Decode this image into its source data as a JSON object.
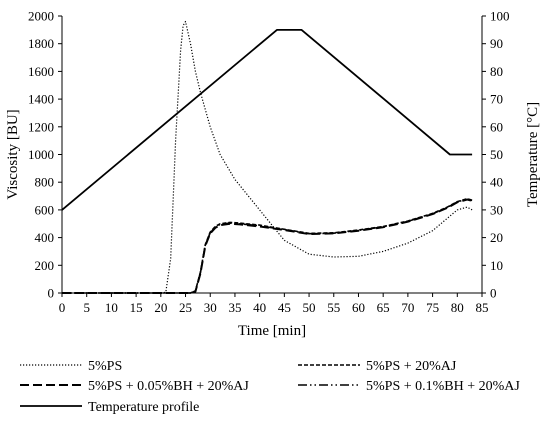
{
  "chart_data": {
    "type": "line",
    "title": "",
    "xlabel": "Time [min]",
    "ylabel": "Viscosity [BU]",
    "y2label": "Temperature [°C]",
    "xlim": [
      0,
      85
    ],
    "ylim": [
      0,
      2000
    ],
    "y2lim": [
      0,
      100
    ],
    "xticks": [
      0,
      5,
      10,
      15,
      20,
      25,
      30,
      35,
      40,
      45,
      50,
      55,
      60,
      65,
      70,
      75,
      80,
      85
    ],
    "yticks": [
      0,
      200,
      400,
      600,
      800,
      1000,
      1200,
      1400,
      1600,
      1800,
      2000
    ],
    "y2ticks": [
      0,
      10,
      20,
      30,
      40,
      50,
      60,
      70,
      80,
      90,
      100
    ],
    "grid": false,
    "legend_position": "bottom",
    "series": [
      {
        "name": "5%PS",
        "axis": "left",
        "dash": "dotted",
        "x": [
          0,
          20,
          21,
          22,
          23,
          24,
          24.5,
          25,
          26,
          27,
          28,
          30,
          32,
          35,
          40,
          45,
          50,
          55,
          60,
          65,
          70,
          75,
          78,
          80,
          82,
          83
        ],
        "y": [
          0,
          0,
          5,
          250,
          1100,
          1750,
          1930,
          1960,
          1800,
          1600,
          1450,
          1200,
          1000,
          820,
          600,
          380,
          280,
          260,
          265,
          300,
          360,
          450,
          540,
          600,
          620,
          600
        ]
      },
      {
        "name": "5%PS + 20%AJ",
        "axis": "left",
        "dash": "short-dash",
        "x": [
          0,
          26,
          27,
          28,
          29,
          30,
          31,
          32,
          34,
          36,
          40,
          45,
          50,
          55,
          60,
          65,
          70,
          75,
          78,
          80,
          82,
          83
        ],
        "y": [
          0,
          0,
          15,
          150,
          350,
          440,
          480,
          500,
          510,
          505,
          490,
          460,
          430,
          435,
          455,
          480,
          520,
          575,
          620,
          660,
          680,
          670
        ]
      },
      {
        "name": "5%PS + 0.05%BH + 20%AJ",
        "axis": "left",
        "dash": "long-dash",
        "x": [
          0,
          26,
          27,
          28,
          29,
          30,
          31,
          32,
          34,
          36,
          40,
          45,
          50,
          55,
          60,
          65,
          70,
          75,
          78,
          80,
          82,
          83
        ],
        "y": [
          0,
          0,
          10,
          140,
          340,
          430,
          470,
          490,
          500,
          495,
          480,
          455,
          425,
          430,
          450,
          475,
          515,
          570,
          615,
          655,
          675,
          665
        ]
      },
      {
        "name": "5%PS + 0.1%BH + 20%AJ",
        "axis": "left",
        "dash": "dash-dot-dot",
        "x": [
          0,
          26,
          27,
          28,
          29,
          30,
          31,
          32,
          34,
          36,
          40,
          45,
          50,
          55,
          60,
          65,
          70,
          75,
          78,
          80,
          82,
          83
        ],
        "y": [
          0,
          0,
          12,
          145,
          345,
          435,
          475,
          495,
          505,
          500,
          485,
          458,
          428,
          432,
          452,
          478,
          518,
          572,
          618,
          658,
          678,
          668
        ]
      },
      {
        "name": "Temperature profile",
        "axis": "right",
        "dash": "solid",
        "x": [
          0,
          43.5,
          48.5,
          78.5,
          83
        ],
        "y": [
          30,
          95,
          95,
          50,
          50
        ]
      }
    ],
    "colors": {
      "lines": "#000000",
      "axis": "#000000"
    }
  }
}
